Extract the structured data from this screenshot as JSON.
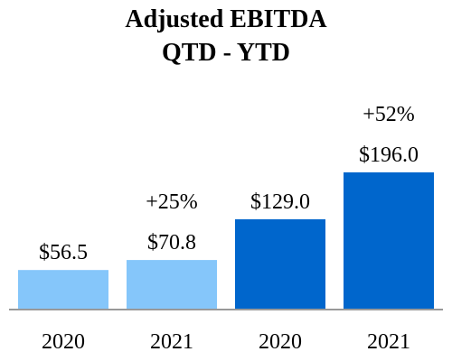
{
  "chart_data": {
    "type": "bar",
    "title": [
      "Adjusted EBITDA",
      "QTD - YTD"
    ],
    "categories": [
      "2020",
      "2021",
      "2020",
      "2021"
    ],
    "values": [
      56.5,
      70.8,
      129.0,
      196.0
    ],
    "value_labels": [
      "$56.5",
      "$70.8",
      "$129.0",
      "$196.0"
    ],
    "growth_labels": [
      "",
      "+25%",
      "",
      "+52%"
    ],
    "groups": [
      {
        "name": "",
        "bars": [
          0,
          1
        ],
        "color": "#85c6fa"
      },
      {
        "name": "",
        "bars": [
          2,
          3
        ],
        "color": "#0066cc"
      }
    ],
    "ylim": [
      0,
      200
    ],
    "grid": false,
    "legend": "none",
    "axis_color": "#999999"
  }
}
